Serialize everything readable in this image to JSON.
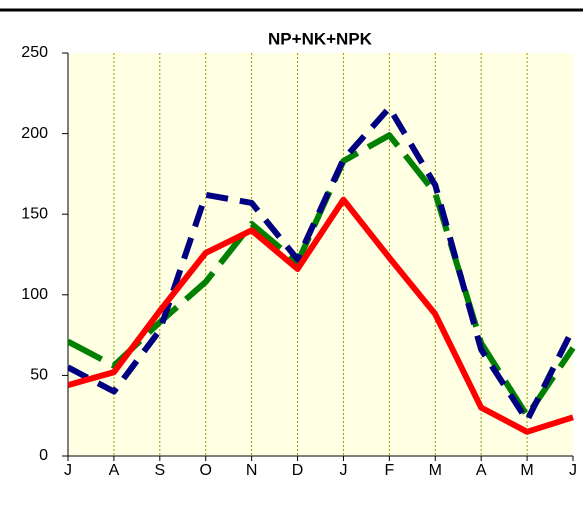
{
  "chart_data": {
    "type": "line",
    "title": "NP+NK+NPK",
    "categories": [
      "J",
      "A",
      "S",
      "O",
      "N",
      "D",
      "J",
      "F",
      "M",
      "A",
      "M",
      "J"
    ],
    "series": [
      {
        "color": "#008000",
        "dash": "38 12",
        "values": [
          71,
          56,
          83,
          108,
          144,
          120,
          183,
          199,
          163,
          70,
          25,
          67
        ]
      },
      {
        "color": "#000080",
        "dash": "22 12",
        "values": [
          55,
          40,
          78,
          162,
          157,
          122,
          184,
          216,
          168,
          66,
          22,
          79
        ]
      },
      {
        "color": "#ff0000",
        "values": [
          44,
          52,
          90,
          126,
          140,
          116,
          159,
          123,
          88,
          30,
          15,
          24
        ]
      }
    ],
    "ylim": [
      0,
      250
    ],
    "yticks": [
      0,
      50,
      100,
      150,
      200,
      250
    ],
    "grid": true,
    "plot_background": "#ffffe4"
  }
}
